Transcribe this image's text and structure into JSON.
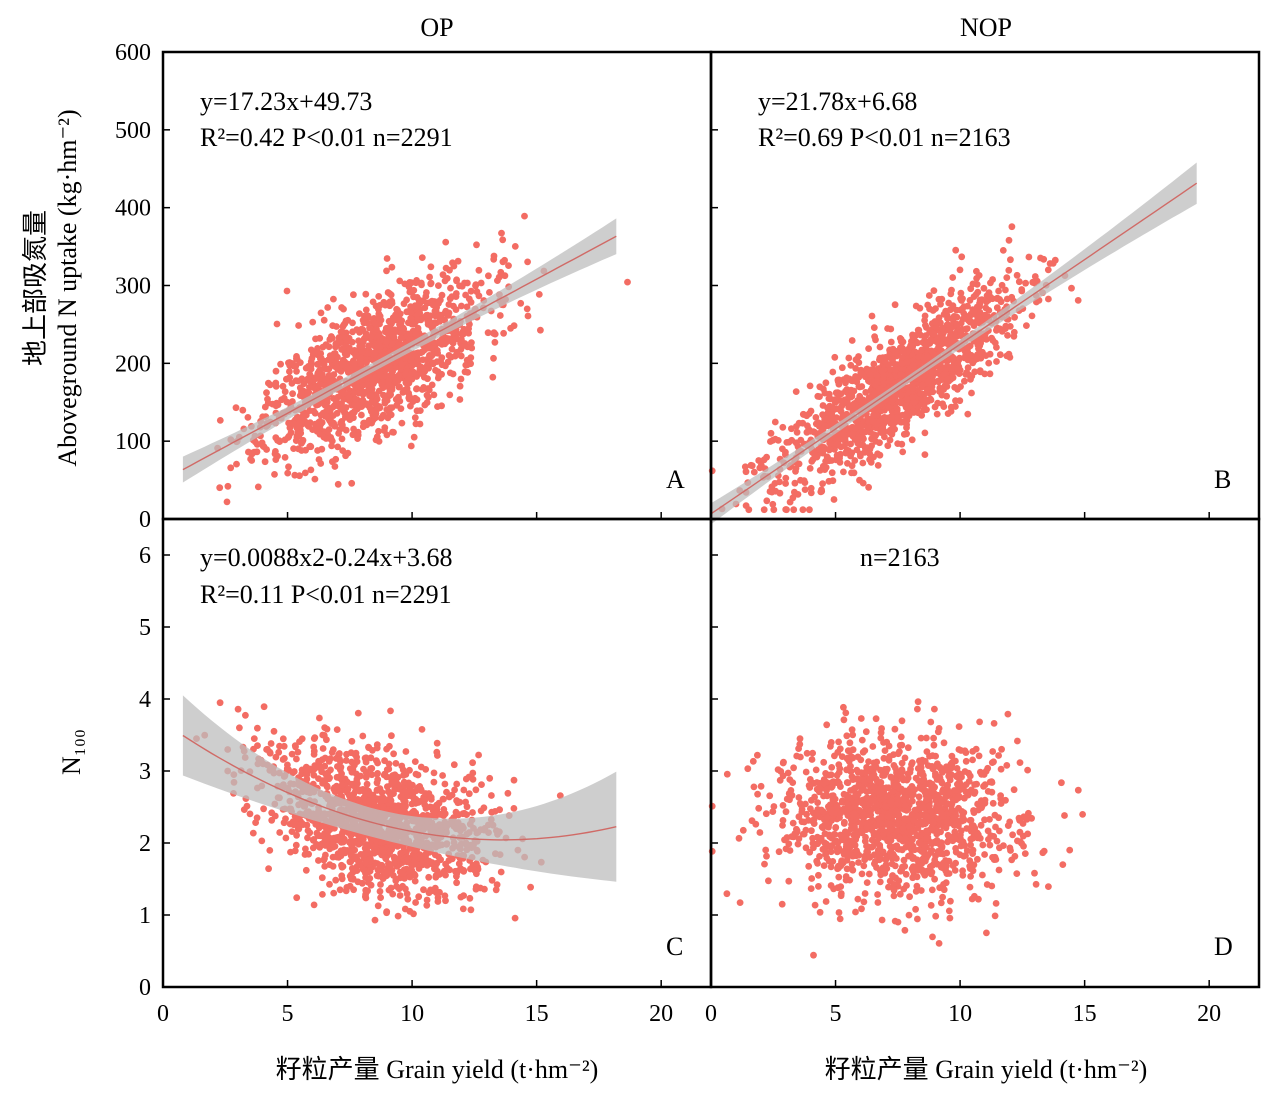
{
  "chart_data": [
    {
      "type": "scatter",
      "panel": "A",
      "column_title": "OP",
      "ylabel_cn": "地上部吸氮量",
      "ylabel_en": "Aboveground N uptake (kg·hm⁻²)",
      "xlim": [
        0,
        22
      ],
      "ylim": [
        0,
        600
      ],
      "yticks": [
        "0",
        "100",
        "200",
        "300",
        "400",
        "500",
        "600"
      ],
      "fit": {
        "type": "linear",
        "coef": [
          17.23,
          49.73
        ],
        "x_range": [
          0.8,
          18.2
        ],
        "band": 6
      },
      "eq_line1": "y=17.23x+49.73",
      "eq_line2": "R²=0.42   P<0.01   n=2291",
      "n": 2291,
      "sample_cloud": {
        "center_x": 8.5,
        "sd_x": 2.2,
        "noise_sd": 42,
        "seed": 11
      }
    },
    {
      "type": "scatter",
      "panel": "B",
      "column_title": "NOP",
      "xlim": [
        0,
        22
      ],
      "ylim": [
        0,
        600
      ],
      "fit": {
        "type": "linear",
        "coef": [
          21.78,
          6.68
        ],
        "x_range": [
          0,
          19.5
        ],
        "band": 5
      },
      "eq_line1": "y=21.78x+6.68",
      "eq_line2": "R²=0.69   P<0.01   n=2163",
      "n": 2163,
      "sample_cloud": {
        "center_x": 7.5,
        "sd_x": 2.4,
        "noise_sd": 35,
        "seed": 23
      }
    },
    {
      "type": "scatter",
      "panel": "C",
      "ylabel": "N₁₀₀",
      "xlabel_cn": "籽粒产量",
      "xlabel_en": "Grain yield (t·hm⁻²)",
      "xlim": [
        0,
        22
      ],
      "ylim": [
        0,
        6.5
      ],
      "xticks": [
        "0",
        "5",
        "10",
        "15",
        "20"
      ],
      "yticks": [
        "0",
        "1",
        "2",
        "3",
        "4",
        "5",
        "6"
      ],
      "fit": {
        "type": "quadratic",
        "coef": [
          0.0088,
          -0.24,
          3.68
        ],
        "x_range": [
          0.8,
          18.2
        ],
        "band": 0.2
      },
      "eq_line1": "y=0.0088x2-0.24x+3.68",
      "eq_line2": "R²=0.11 P<0.01   n=2291",
      "n": 2291,
      "sample_cloud": {
        "center_x": 8.5,
        "sd_x": 2.2,
        "noise_sd": 0.48,
        "seed": 37
      }
    },
    {
      "type": "scatter",
      "panel": "D",
      "xlabel_cn": "籽粒产量",
      "xlabel_en": "Grain yield (t·hm⁻²)",
      "xlim": [
        0,
        22
      ],
      "ylim": [
        0,
        6.5
      ],
      "xticks": [
        "0",
        "5",
        "10",
        "15",
        "20"
      ],
      "eq_line1": "n=2163",
      "n": 2163,
      "sample_cloud": {
        "center_x": 7.5,
        "sd_x": 2.4,
        "mean_y": 2.35,
        "noise_sd": 0.55,
        "seed": 53
      }
    }
  ],
  "colors": {
    "point": "#f36c63",
    "fit_line": "#d06a66",
    "band": "#bdbdbd"
  }
}
